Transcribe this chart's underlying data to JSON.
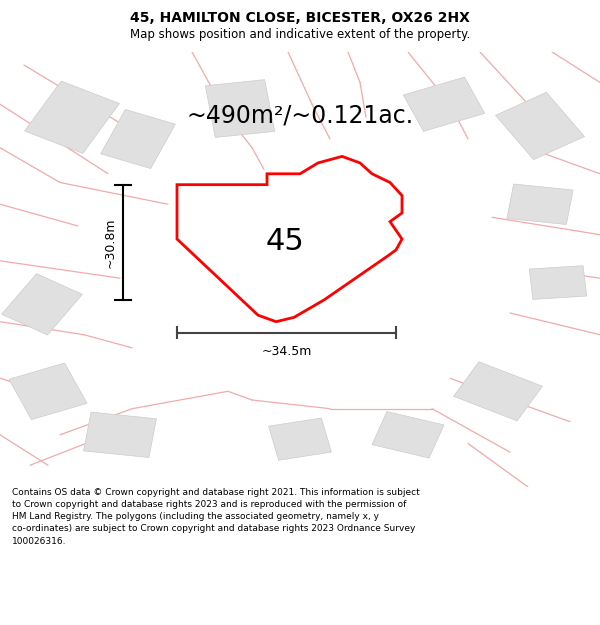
{
  "title": "45, HAMILTON CLOSE, BICESTER, OX26 2HX",
  "subtitle": "Map shows position and indicative extent of the property.",
  "area_label": "~490m²/~0.121ac.",
  "plot_number": "45",
  "width_label": "~34.5m",
  "height_label": "~30.8m",
  "background_color": "#ffffff",
  "plot_edge_color": "#ff0000",
  "road_color": "#f2aaaa",
  "building_color": "#e0e0e0",
  "building_edge": "#cccccc",
  "footnote": "Contains OS data © Crown copyright and database right 2021. This information is subject to Crown copyright and database rights 2023 and is reproduced with the permission of HM Land Registry. The polygons (including the associated geometry, namely x, y co-ordinates) are subject to Crown copyright and database rights 2023 Ordnance Survey 100026316.",
  "title_fontsize": 10,
  "subtitle_fontsize": 8.5,
  "area_fontsize": 17,
  "plot_num_fontsize": 22,
  "footnote_fontsize": 6.5
}
